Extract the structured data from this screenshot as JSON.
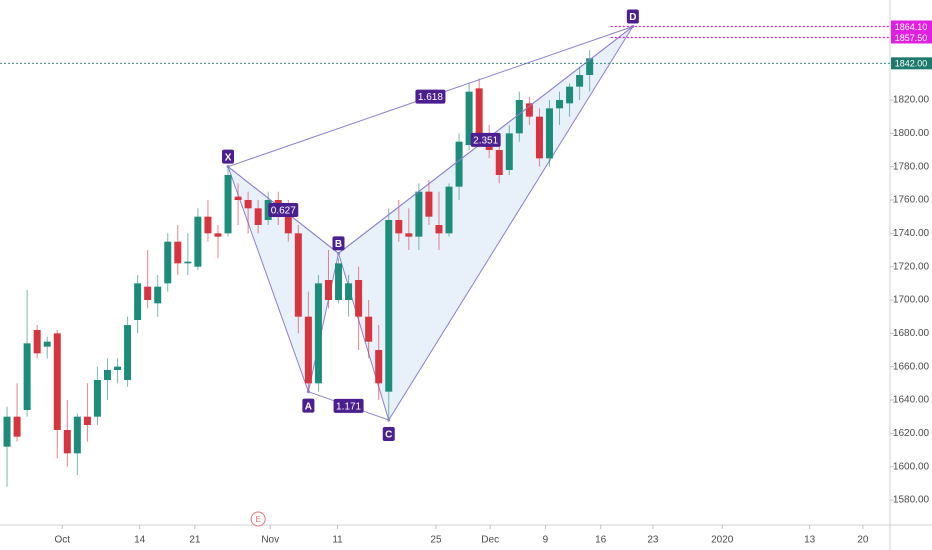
{
  "chart_data": {
    "type": "candlestick",
    "up_color": "#1e8c7a",
    "down_color": "#d6343f",
    "open": [
      1612,
      1630,
      1634,
      1682,
      1672,
      1680,
      1622,
      1608,
      1630,
      1630,
      1652,
      1658,
      1652,
      1688,
      1708,
      1698,
      1710,
      1735,
      1722,
      1720,
      1750,
      1740,
      1740,
      1762,
      1760,
      1755,
      1748,
      1760,
      1752,
      1740,
      1690,
      1650,
      1712,
      1700,
      1700,
      1712,
      1690,
      1670,
      1645,
      1748,
      1740,
      1738,
      1765,
      1745,
      1740,
      1768,
      1793,
      1827,
      1798,
      1790,
      1778,
      1800,
      1818,
      1810,
      1785,
      1815,
      1818,
      1828,
      1835
    ],
    "high": [
      1636,
      1650,
      1706,
      1685,
      1678,
      1682,
      1640,
      1632,
      1650,
      1660,
      1665,
      1665,
      1690,
      1715,
      1730,
      1715,
      1740,
      1745,
      1740,
      1755,
      1760,
      1745,
      1780,
      1770,
      1765,
      1760,
      1765,
      1765,
      1760,
      1745,
      1705,
      1715,
      1730,
      1725,
      1715,
      1720,
      1700,
      1685,
      1755,
      1760,
      1755,
      1770,
      1772,
      1765,
      1770,
      1800,
      1830,
      1833,
      1805,
      1800,
      1805,
      1825,
      1822,
      1815,
      1820,
      1825,
      1830,
      1840,
      1850
    ],
    "low": [
      1588,
      1615,
      1630,
      1665,
      1665,
      1605,
      1600,
      1595,
      1615,
      1625,
      1640,
      1650,
      1648,
      1680,
      1695,
      1690,
      1705,
      1715,
      1715,
      1718,
      1735,
      1725,
      1738,
      1745,
      1740,
      1740,
      1745,
      1745,
      1735,
      1680,
      1645,
      1645,
      1695,
      1698,
      1690,
      1670,
      1665,
      1640,
      1628,
      1735,
      1730,
      1730,
      1745,
      1730,
      1738,
      1760,
      1790,
      1795,
      1785,
      1770,
      1775,
      1795,
      1805,
      1780,
      1780,
      1805,
      1810,
      1820,
      1825
    ],
    "close": [
      1630,
      1618,
      1674,
      1668,
      1675,
      1622,
      1608,
      1630,
      1625,
      1652,
      1658,
      1660,
      1685,
      1710,
      1700,
      1708,
      1735,
      1722,
      1723,
      1750,
      1740,
      1738,
      1775,
      1760,
      1755,
      1745,
      1760,
      1750,
      1740,
      1690,
      1650,
      1710,
      1700,
      1722,
      1710,
      1690,
      1675,
      1650,
      1748,
      1740,
      1738,
      1765,
      1750,
      1740,
      1768,
      1795,
      1825,
      1800,
      1790,
      1775,
      1800,
      1820,
      1810,
      1785,
      1815,
      1820,
      1828,
      1835,
      1845
    ],
    "xlim": [
      -0.7,
      87.9
    ],
    "ylim": [
      1565,
      1880
    ],
    "xticks": [
      {
        "value": 5.5,
        "label": "Oct"
      },
      {
        "value": 13.2,
        "label": "14"
      },
      {
        "value": 18.7,
        "label": "21"
      },
      {
        "value": 26.2,
        "label": "Nov"
      },
      {
        "value": 32.9,
        "label": "11"
      },
      {
        "value": 42.7,
        "label": "25"
      },
      {
        "value": 48.1,
        "label": "Dec"
      },
      {
        "value": 53.6,
        "label": "9"
      },
      {
        "value": 59.1,
        "label": "16"
      },
      {
        "value": 64.3,
        "label": "23"
      },
      {
        "value": 71.2,
        "label": "2020"
      },
      {
        "value": 79.9,
        "label": "13"
      },
      {
        "value": 85.2,
        "label": "20"
      }
    ],
    "yticks": [
      {
        "value": 1580,
        "label": "1580.00"
      },
      {
        "value": 1600,
        "label": "1600.00"
      },
      {
        "value": 1620,
        "label": "1620.00"
      },
      {
        "value": 1640,
        "label": "1640.00"
      },
      {
        "value": 1660,
        "label": "1660.00"
      },
      {
        "value": 1680,
        "label": "1680.00"
      },
      {
        "value": 1700,
        "label": "1700.00"
      },
      {
        "value": 1720,
        "label": "1720.00"
      },
      {
        "value": 1740,
        "label": "1740.00"
      },
      {
        "value": 1760,
        "label": "1760.00"
      },
      {
        "value": 1780,
        "label": "1780.00"
      },
      {
        "value": 1800,
        "label": "1800.00"
      },
      {
        "value": 1820,
        "label": "1820.00"
      }
    ],
    "price_lines": [
      {
        "value": 1864.1,
        "label": "1864.10",
        "color": "#e020e0"
      },
      {
        "value": 1857.5,
        "label": "1857.50",
        "color": "#e020e0"
      },
      {
        "value": 1842,
        "label": "1842.00",
        "color": "#1e7a6c"
      }
    ],
    "pattern": {
      "line_color": "#8d7fd0",
      "fill_color": "#e2edf8",
      "label_color": "#4b1f8f",
      "points": [
        {
          "label": "X",
          "x": 22,
          "y": 1780
        },
        {
          "label": "A",
          "x": 30,
          "y": 1645
        },
        {
          "label": "B",
          "x": 33,
          "y": 1728
        },
        {
          "label": "C",
          "x": 38,
          "y": 1628
        },
        {
          "label": "D",
          "x": 62.3,
          "y": 1864.1
        }
      ],
      "ratios": [
        {
          "label": "0.627",
          "from": 0,
          "to": 2
        },
        {
          "label": "1.171",
          "from": 1,
          "to": 3
        },
        {
          "label": "1.618",
          "from": 0,
          "to": 4
        },
        {
          "label": "2.351",
          "from": 2,
          "to": 4
        }
      ]
    },
    "event_marker": {
      "label": "E",
      "x": 25
    }
  }
}
